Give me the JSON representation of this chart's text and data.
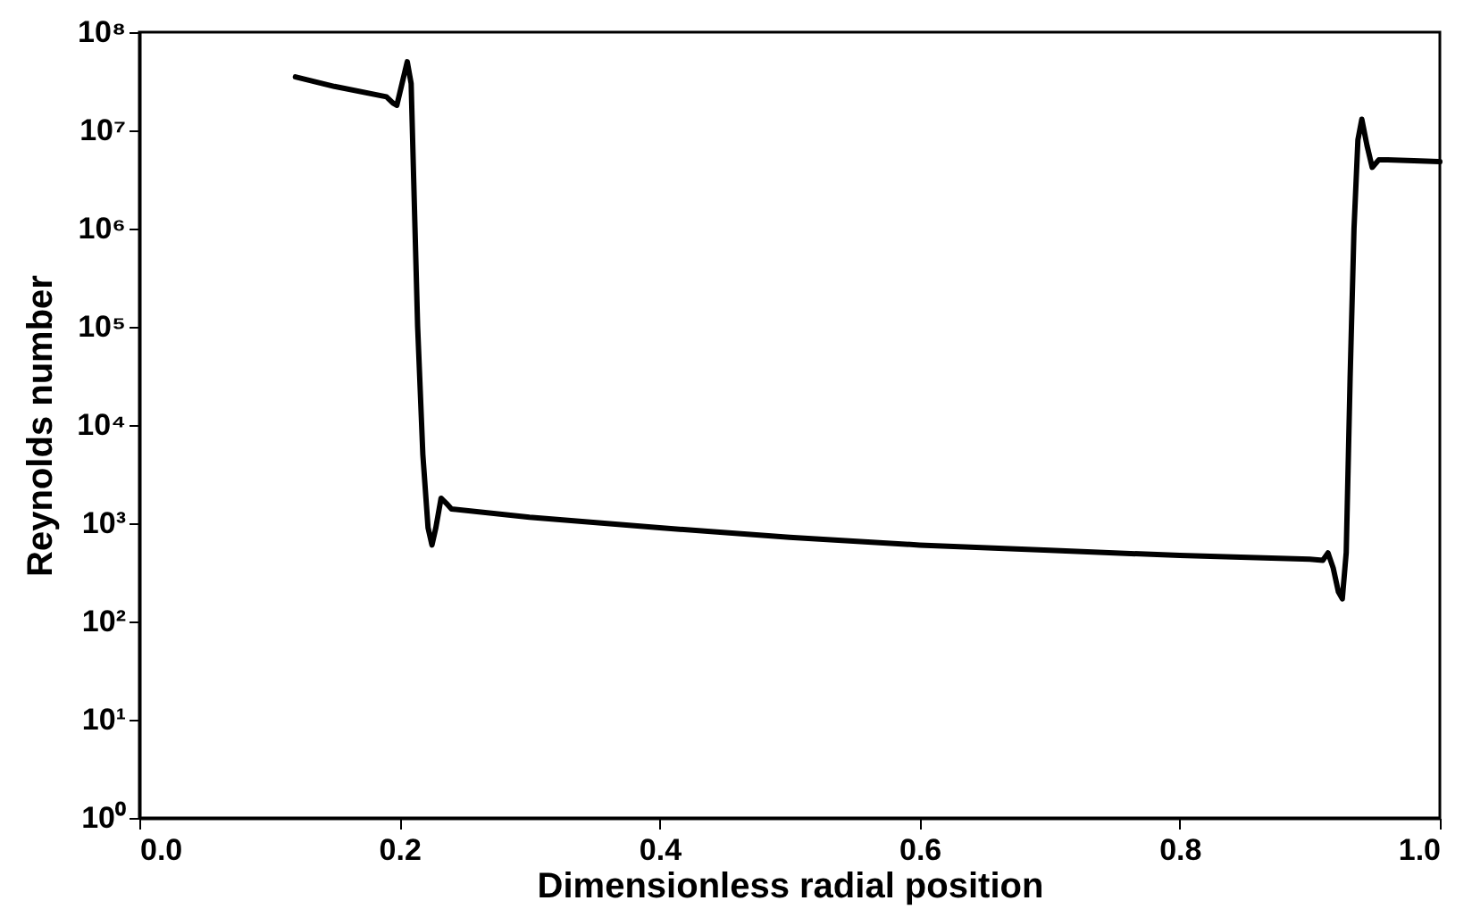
{
  "chart_data": {
    "type": "line",
    "xlabel": "Dimensionless radial position",
    "ylabel": "Reynolds number",
    "log": "y",
    "line_style": "solid",
    "xlim": [
      0.0,
      1.0
    ],
    "xticks": [
      {
        "value": 0,
        "label": "0.0"
      },
      0.2,
      0.4,
      0.6,
      0.8,
      {
        "value": 1,
        "label": "1.0"
      }
    ],
    "ylim": [
      1,
      100000000
    ],
    "yticks": [
      {
        "value": 1,
        "label": "10⁰"
      },
      {
        "value": 10,
        "label": "10¹"
      },
      {
        "value": 100,
        "label": "10²"
      },
      {
        "value": 1000,
        "label": "10³"
      },
      {
        "value": 10000,
        "label": "10⁴"
      },
      {
        "value": 100000,
        "label": "10⁵"
      },
      {
        "value": 1000000,
        "label": "10⁶"
      },
      {
        "value": 10000000,
        "label": "10⁷"
      },
      {
        "value": 100000000,
        "label": "10⁸"
      }
    ],
    "x": [
      0.12,
      0.15,
      0.19,
      0.195,
      0.198,
      0.202,
      0.206,
      0.209,
      0.211,
      0.214,
      0.218,
      0.222,
      0.225,
      0.228,
      0.232,
      0.236,
      0.24,
      0.3,
      0.4,
      0.5,
      0.6,
      0.7,
      0.8,
      0.9,
      0.91,
      0.914,
      0.918,
      0.922,
      0.925,
      0.928,
      0.931,
      0.934,
      0.937,
      0.94,
      0.944,
      0.948,
      0.953,
      0.96,
      1.0
    ],
    "series": [
      {
        "color": "#000000",
        "values": [
          35000000,
          28000000,
          22000000,
          19000000,
          18000000,
          30000000,
          50000000,
          30000000,
          3000000,
          100000,
          5000,
          900,
          600,
          900,
          1800,
          1600,
          1400,
          1150,
          900,
          720,
          600,
          530,
          470,
          430,
          420,
          500,
          350,
          200,
          170,
          500,
          30000,
          1000000,
          8000000,
          13000000,
          7000000,
          4200000,
          5000000,
          5000000,
          4800000
        ]
      }
    ]
  }
}
